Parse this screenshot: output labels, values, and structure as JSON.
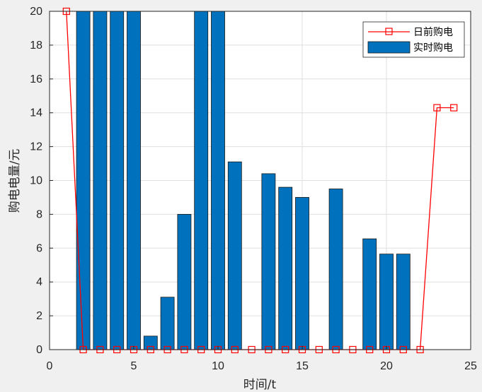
{
  "chart_data": {
    "type": "bar",
    "xlabel": "时间/t",
    "ylabel": "购电电量/元",
    "xlim": [
      0,
      25
    ],
    "ylim": [
      0,
      20
    ],
    "xticks": [
      0,
      5,
      10,
      15,
      20,
      25
    ],
    "yticks": [
      0,
      2,
      4,
      6,
      8,
      10,
      12,
      14,
      16,
      18,
      20
    ],
    "grid": true,
    "legend_position": "top-right",
    "series": [
      {
        "name": "日前购电",
        "type": "line",
        "color": "#ff0000",
        "marker": "square",
        "x": [
          1,
          2,
          3,
          4,
          5,
          6,
          7,
          8,
          9,
          10,
          11,
          12,
          13,
          14,
          15,
          16,
          17,
          18,
          19,
          20,
          21,
          22,
          23,
          24
        ],
        "values": [
          20,
          0,
          0,
          0,
          0,
          0,
          0,
          0,
          0,
          0,
          0,
          0,
          0,
          0,
          0,
          0,
          0,
          0,
          0,
          0,
          0,
          0,
          14.3,
          14.3
        ]
      },
      {
        "name": "实时购电",
        "type": "bar",
        "color": "#0072bd",
        "x": [
          1,
          2,
          3,
          4,
          5,
          6,
          7,
          8,
          9,
          10,
          11,
          12,
          13,
          14,
          15,
          16,
          17,
          18,
          19,
          20,
          21,
          22,
          23,
          24
        ],
        "values": [
          0,
          20,
          20,
          20,
          20,
          0.8,
          3.1,
          8.0,
          20,
          20,
          11.1,
          0,
          10.4,
          9.6,
          9.0,
          0,
          9.5,
          0,
          6.55,
          5.65,
          5.65,
          0,
          0,
          0
        ]
      }
    ]
  }
}
